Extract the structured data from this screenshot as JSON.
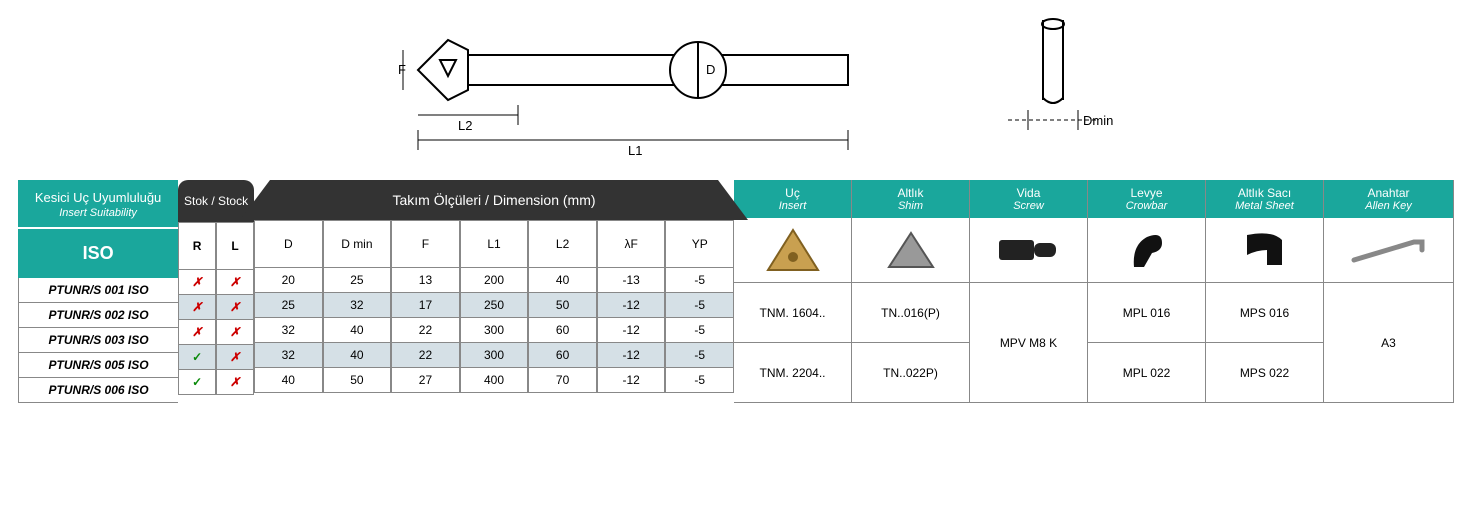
{
  "header": {
    "suitability_tr": "Kesici Uç Uyumluluğu",
    "suitability_en": "Insert Suitability",
    "iso": "ISO",
    "stock": "Stok / Stock",
    "stock_r": "R",
    "stock_l": "L",
    "dim_title": "Takım Ölçüleri / Dimension (mm)",
    "dim_cols": {
      "d": "D",
      "dmin": "D min",
      "f": "F",
      "l1": "L1",
      "l2": "L2",
      "lf": "λF",
      "yp": "YP"
    }
  },
  "rows": [
    {
      "iso": "PTUNR/S 001 ISO",
      "r": "✗",
      "l": "✗",
      "d": "20",
      "dmin": "25",
      "f": "13",
      "l1": "200",
      "l2": "40",
      "lf": "-13",
      "yp": "-5",
      "alt": false
    },
    {
      "iso": "PTUNR/S 002 ISO",
      "r": "✗",
      "l": "✗",
      "d": "25",
      "dmin": "32",
      "f": "17",
      "l1": "250",
      "l2": "50",
      "lf": "-12",
      "yp": "-5",
      "alt": true
    },
    {
      "iso": "PTUNR/S 003 ISO",
      "r": "✗",
      "l": "✗",
      "d": "32",
      "dmin": "40",
      "f": "22",
      "l1": "300",
      "l2": "60",
      "lf": "-12",
      "yp": "-5",
      "alt": false
    },
    {
      "iso": "PTUNR/S 005 ISO",
      "r": "✓",
      "l": "✗",
      "d": "32",
      "dmin": "40",
      "f": "22",
      "l1": "300",
      "l2": "60",
      "lf": "-12",
      "yp": "-5",
      "alt": true
    },
    {
      "iso": "PTUNR/S 006 ISO",
      "r": "✓",
      "l": "✗",
      "d": "40",
      "dmin": "50",
      "f": "27",
      "l1": "400",
      "l2": "70",
      "lf": "-12",
      "yp": "-5",
      "alt": false
    }
  ],
  "parts": {
    "insert": {
      "tr": "Uç",
      "en": "Insert",
      "v1": "TNM. 1604..",
      "v2": "TNM. 2204.."
    },
    "shim": {
      "tr": "Altlık",
      "en": "Shim",
      "v1": "TN..016(P)",
      "v2": "TN..022P)"
    },
    "screw": {
      "tr": "Vida",
      "en": "Screw",
      "v": "MPV M8 K"
    },
    "crowbar": {
      "tr": "Levye",
      "en": "Crowbar",
      "v1": "MPL 016",
      "v2": "MPL 022"
    },
    "sheet": {
      "tr": "Altlık Sacı",
      "en": "Metal Sheet",
      "v1": "MPS 016",
      "v2": "MPS 022"
    },
    "key": {
      "tr": "Anahtar",
      "en": "Allen Key",
      "v": "A3"
    }
  },
  "diagram_labels": {
    "f": "F",
    "l2": "L2",
    "d": "D",
    "l1": "L1",
    "dmin": "Dmin"
  },
  "colors": {
    "teal": "#1aa79c",
    "dark": "#333333",
    "alt_row": "#d5e0e6",
    "border": "#888888"
  }
}
